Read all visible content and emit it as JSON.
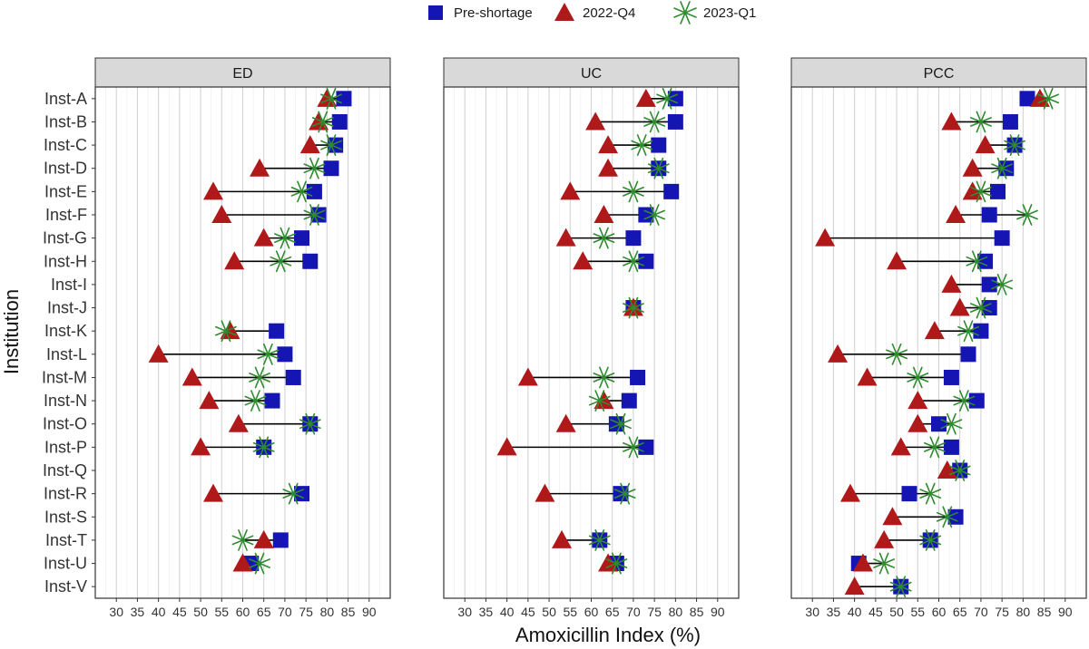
{
  "chart_data": {
    "type": "dumbbell",
    "xlabel": "Amoxicillin Index (%)",
    "ylabel": "Institution",
    "xlim": [
      25,
      95
    ],
    "xticks": [
      30,
      35,
      40,
      45,
      50,
      55,
      60,
      65,
      70,
      75,
      80,
      85,
      90
    ],
    "legend": [
      {
        "key": "pre",
        "label": "Pre-shortage",
        "marker": "square",
        "color": "#1515B4"
      },
      {
        "key": "q4",
        "label": "2022-Q4",
        "marker": "triangle",
        "color": "#B01919"
      },
      {
        "key": "q1",
        "label": "2023-Q1",
        "marker": "asterisk",
        "color": "#2E8B2E"
      }
    ],
    "institutions": [
      "Inst-A",
      "Inst-B",
      "Inst-C",
      "Inst-D",
      "Inst-E",
      "Inst-F",
      "Inst-G",
      "Inst-H",
      "Inst-I",
      "Inst-J",
      "Inst-K",
      "Inst-L",
      "Inst-M",
      "Inst-N",
      "Inst-O",
      "Inst-P",
      "Inst-Q",
      "Inst-R",
      "Inst-S",
      "Inst-T",
      "Inst-U",
      "Inst-V"
    ],
    "panels": [
      {
        "name": "ED",
        "pre": [
          84,
          83,
          82,
          81,
          77,
          78,
          74,
          76,
          null,
          null,
          68,
          70,
          72,
          67,
          76,
          65,
          null,
          74,
          null,
          69,
          62,
          null
        ],
        "q4": [
          80,
          78,
          76,
          64,
          53,
          55,
          65,
          58,
          null,
          null,
          57,
          40,
          48,
          52,
          59,
          50,
          null,
          53,
          null,
          65,
          60,
          null
        ],
        "q1": [
          81,
          79,
          81,
          77,
          74,
          77,
          70,
          69,
          null,
          null,
          56,
          66,
          64,
          63,
          76,
          65,
          null,
          72,
          null,
          60,
          64,
          null
        ]
      },
      {
        "name": "UC",
        "pre": [
          80,
          80,
          76,
          76,
          79,
          73,
          70,
          73,
          null,
          70,
          null,
          null,
          71,
          69,
          66,
          73,
          null,
          67,
          null,
          62,
          66,
          null
        ],
        "q4": [
          73,
          61,
          64,
          64,
          55,
          63,
          54,
          58,
          null,
          70,
          null,
          null,
          45,
          63,
          54,
          40,
          null,
          49,
          null,
          53,
          64,
          null
        ],
        "q1": [
          78,
          75,
          72,
          76,
          70,
          75,
          63,
          70,
          null,
          70,
          null,
          null,
          63,
          62,
          67,
          70,
          null,
          68,
          null,
          62,
          66,
          null
        ]
      },
      {
        "name": "PCC",
        "pre": [
          81,
          77,
          78,
          76,
          74,
          72,
          75,
          71,
          72,
          72,
          70,
          67,
          63,
          69,
          60,
          63,
          65,
          53,
          64,
          58,
          41,
          51
        ],
        "q4": [
          84,
          63,
          71,
          68,
          68,
          64,
          33,
          50,
          63,
          65,
          59,
          36,
          43,
          55,
          55,
          51,
          62,
          39,
          49,
          47,
          42,
          40
        ],
        "q1": [
          86,
          70,
          78,
          75,
          70,
          81,
          null,
          69,
          75,
          70,
          67,
          50,
          55,
          66,
          63,
          59,
          65,
          58,
          62,
          58,
          47,
          51
        ]
      }
    ]
  }
}
